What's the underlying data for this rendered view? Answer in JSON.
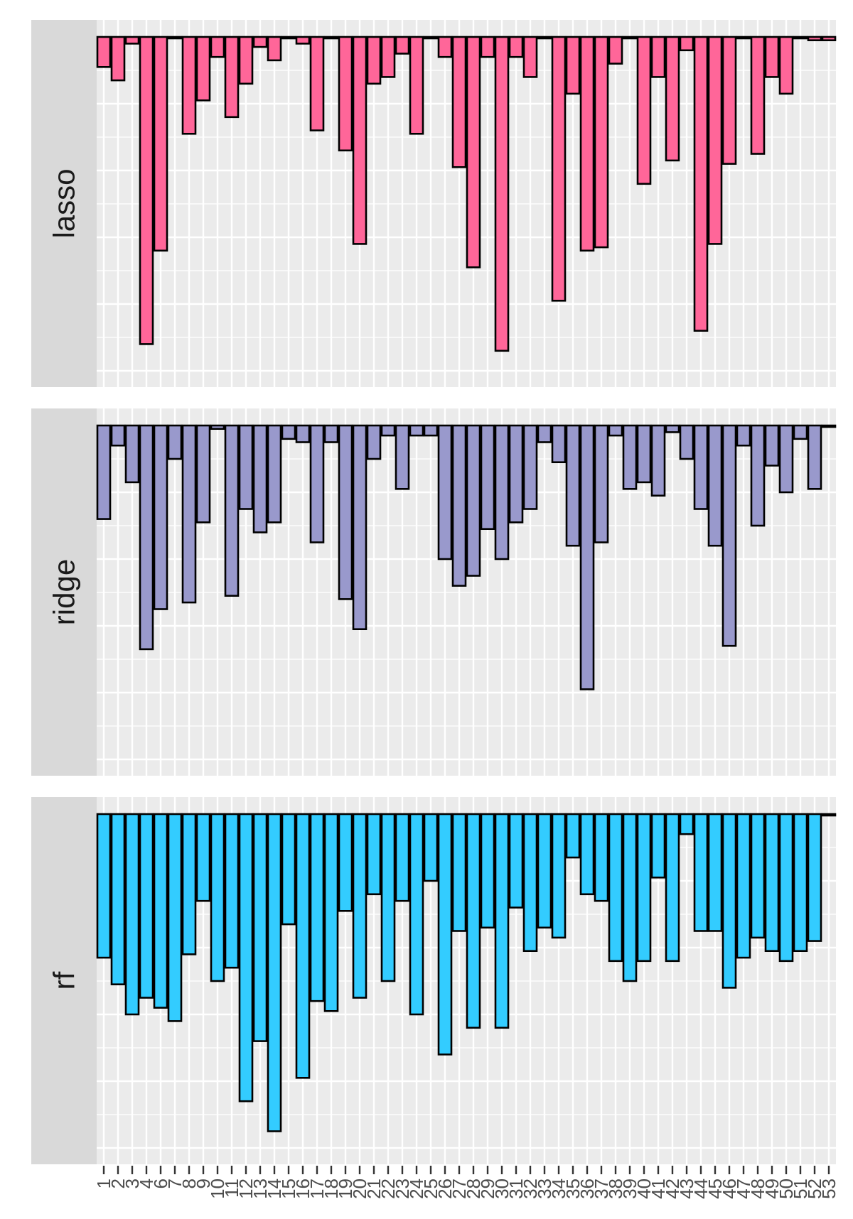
{
  "chart_data": {
    "type": "bar",
    "orientation": "downward",
    "categories": [
      "1",
      "2",
      "3",
      "4",
      "6",
      "7",
      "8",
      "9",
      "10",
      "11",
      "12",
      "13",
      "14",
      "15",
      "16",
      "17",
      "18",
      "19",
      "20",
      "21",
      "22",
      "23",
      "24",
      "25",
      "26",
      "27",
      "28",
      "29",
      "30",
      "31",
      "32",
      "33",
      "34",
      "35",
      "36",
      "37",
      "38",
      "39",
      "40",
      "41",
      "42",
      "43",
      "44",
      "45",
      "46",
      "47",
      "48",
      "49",
      "50",
      "51",
      "52",
      "53"
    ],
    "panels": [
      {
        "strip": "lasso",
        "color": "#FF6699",
        "values": [
          0.09,
          0.13,
          0.02,
          0.92,
          0.64,
          0.0,
          0.29,
          0.19,
          0.06,
          0.24,
          0.14,
          0.03,
          0.07,
          0.0,
          0.02,
          0.28,
          0.0,
          0.34,
          0.62,
          0.14,
          0.12,
          0.05,
          0.29,
          0.0,
          0.06,
          0.39,
          0.69,
          0.06,
          0.94,
          0.06,
          0.12,
          0.0,
          0.79,
          0.17,
          0.64,
          0.63,
          0.08,
          0.0,
          0.44,
          0.12,
          0.37,
          0.04,
          0.88,
          0.62,
          0.38,
          0.0,
          0.35,
          0.12,
          0.17,
          0.0,
          0.01,
          0.01
        ]
      },
      {
        "strip": "ridge",
        "color": "#9999CC",
        "values": [
          0.28,
          0.06,
          0.17,
          0.67,
          0.55,
          0.1,
          0.53,
          0.29,
          0.01,
          0.51,
          0.25,
          0.32,
          0.29,
          0.04,
          0.05,
          0.35,
          0.05,
          0.52,
          0.61,
          0.1,
          0.03,
          0.19,
          0.03,
          0.03,
          0.4,
          0.48,
          0.45,
          0.31,
          0.4,
          0.29,
          0.25,
          0.05,
          0.11,
          0.36,
          0.79,
          0.35,
          0.03,
          0.19,
          0.17,
          0.21,
          0.02,
          0.1,
          0.25,
          0.36,
          0.66,
          0.06,
          0.3,
          0.12,
          0.2,
          0.04,
          0.19,
          0.0
        ]
      },
      {
        "strip": "rf",
        "color": "#33CCFF",
        "values": [
          0.43,
          0.51,
          0.6,
          0.55,
          0.58,
          0.62,
          0.42,
          0.26,
          0.5,
          0.46,
          0.86,
          0.68,
          0.95,
          0.33,
          0.79,
          0.56,
          0.59,
          0.29,
          0.55,
          0.24,
          0.5,
          0.26,
          0.6,
          0.2,
          0.72,
          0.35,
          0.64,
          0.34,
          0.64,
          0.28,
          0.41,
          0.34,
          0.37,
          0.13,
          0.24,
          0.26,
          0.44,
          0.5,
          0.44,
          0.19,
          0.44,
          0.06,
          0.35,
          0.35,
          0.52,
          0.43,
          0.37,
          0.41,
          0.44,
          0.41,
          0.38,
          0.0
        ]
      }
    ],
    "ylim": [
      0,
      1
    ],
    "grid": true,
    "xlabel": "",
    "ylabel": ""
  }
}
